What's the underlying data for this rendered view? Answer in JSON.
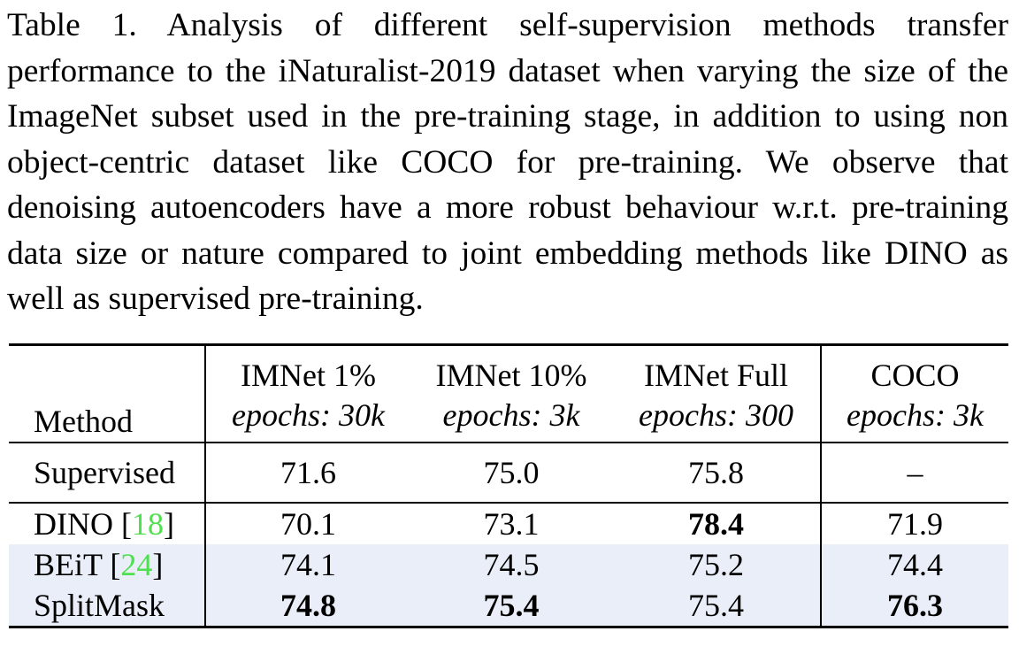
{
  "caption": "Table 1.  Analysis of different self-supervision methods transfer performance to the iNaturalist-2019 dataset when varying the size of the ImageNet subset used in the pre-training stage, in addition to using non object-centric dataset like COCO for pre-training. We observe that denoising autoencoders have a more robust behaviour w.r.t. pre-training data size or nature compared to joint embedding methods like DINO as well as supervised pre-training.",
  "table": {
    "method_header": "Method",
    "columns": [
      {
        "name": "IMNet 1%",
        "epochs": "epochs: 30k"
      },
      {
        "name": "IMNet 10%",
        "epochs": "epochs: 3k"
      },
      {
        "name": "IMNet Full",
        "epochs": "epochs: 300"
      },
      {
        "name": "COCO",
        "epochs": "epochs: 3k"
      }
    ],
    "sections": [
      [
        {
          "method": "Supervised",
          "values": [
            "71.6",
            "75.0",
            "75.8",
            "–"
          ],
          "bold": [],
          "highlight": false
        }
      ],
      [
        {
          "method": "DINO",
          "citation": {
            "open": "[",
            "number": "18",
            "close": "]"
          },
          "values": [
            "70.1",
            "73.1",
            "78.4",
            "71.9"
          ],
          "bold": [
            2
          ],
          "highlight": false
        },
        {
          "method": "BEiT",
          "citation": {
            "open": "[",
            "number": "24",
            "close": "]"
          },
          "values": [
            "74.1",
            "74.5",
            "75.2",
            "74.4"
          ],
          "bold": [],
          "highlight": true
        },
        {
          "method": "SplitMask",
          "values": [
            "74.8",
            "75.4",
            "75.4",
            "76.3"
          ],
          "bold": [
            0,
            1,
            3
          ],
          "highlight": true
        }
      ]
    ]
  }
}
